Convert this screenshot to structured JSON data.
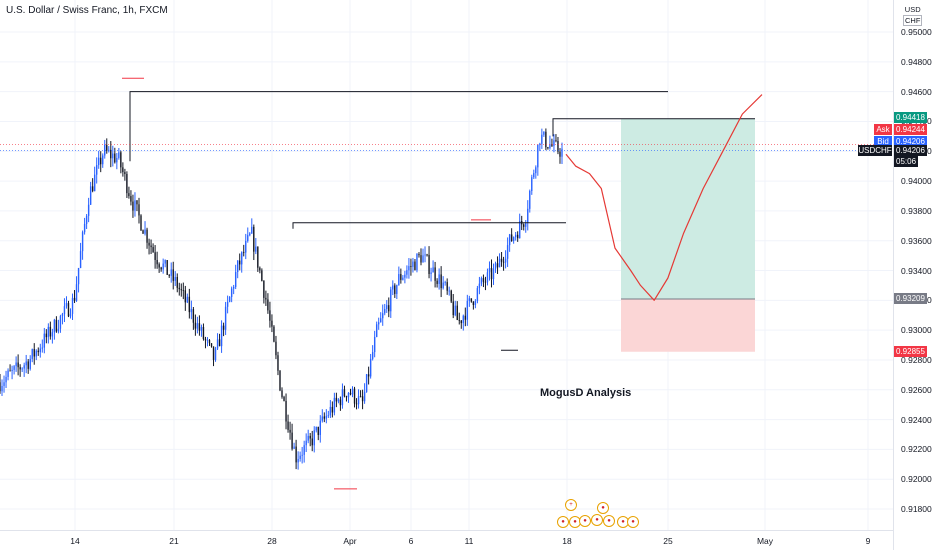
{
  "header": {
    "title": "U.S. Dollar / Swiss Franc, 1h, FXCM"
  },
  "annotation": {
    "text": "MogusD Analysis"
  },
  "price_axis": {
    "currency_top": "USD",
    "currency": "CHF",
    "ticks": [
      "0.95000",
      "0.94800",
      "0.94600",
      "0.94400",
      "0.94200",
      "0.94000",
      "0.93800",
      "0.93600",
      "0.93400",
      "0.93200",
      "0.93000",
      "0.92800",
      "0.92600",
      "0.92400",
      "0.92200",
      "0.92000",
      "0.91800"
    ],
    "ask_label": "Ask",
    "ask_value": "0.94244",
    "bid_label": "Bid",
    "bid_value": "0.94206",
    "target_value": "0.94418",
    "symbol_label": "USDCHF",
    "last_value": "0.94206",
    "countdown": "05:06",
    "entry_value": "0.93209",
    "stop_value": "0.92855"
  },
  "time_axis": {
    "labels": [
      "14",
      "21",
      "28",
      "Apr",
      "6",
      "11",
      "18",
      "25",
      "May",
      "9"
    ]
  },
  "colors": {
    "up_candle": "#2962ff",
    "down_candle": "#131722",
    "profit_zone": "#cdebe3",
    "loss_zone": "#fbd6d6",
    "projection": "#e53935",
    "ask_tag": "#f23645",
    "bid_tag": "#2962ff",
    "target_tag": "#089981",
    "entry_tag": "#787b86",
    "stop_tag": "#f23645"
  },
  "chart_data": {
    "type": "candlestick",
    "title": "U.S. Dollar / Swiss Franc, 1h, FXCM",
    "symbol": "USDCHF",
    "interval": "1h",
    "ylim": [
      0.9175,
      0.9515
    ],
    "x_ticks": [
      "14",
      "21",
      "28",
      "Apr",
      "6",
      "11",
      "18",
      "25",
      "May",
      "9"
    ],
    "price_path": [
      {
        "t": 0,
        "p": 0.9265
      },
      {
        "t": 0.04,
        "p": 0.928
      },
      {
        "t": 0.07,
        "p": 0.93
      },
      {
        "t": 0.1,
        "p": 0.932
      },
      {
        "t": 0.12,
        "p": 0.939
      },
      {
        "t": 0.14,
        "p": 0.942
      },
      {
        "t": 0.16,
        "p": 0.9415
      },
      {
        "t": 0.18,
        "p": 0.9385
      },
      {
        "t": 0.21,
        "p": 0.935
      },
      {
        "t": 0.24,
        "p": 0.933
      },
      {
        "t": 0.27,
        "p": 0.93
      },
      {
        "t": 0.29,
        "p": 0.928
      },
      {
        "t": 0.32,
        "p": 0.934
      },
      {
        "t": 0.34,
        "p": 0.9365
      },
      {
        "t": 0.36,
        "p": 0.932
      },
      {
        "t": 0.38,
        "p": 0.926
      },
      {
        "t": 0.4,
        "p": 0.9215
      },
      {
        "t": 0.42,
        "p": 0.9225
      },
      {
        "t": 0.445,
        "p": 0.9245
      },
      {
        "t": 0.47,
        "p": 0.926
      },
      {
        "t": 0.49,
        "p": 0.925
      },
      {
        "t": 0.51,
        "p": 0.93
      },
      {
        "t": 0.54,
        "p": 0.9335
      },
      {
        "t": 0.57,
        "p": 0.935
      },
      {
        "t": 0.6,
        "p": 0.933
      },
      {
        "t": 0.62,
        "p": 0.9305
      },
      {
        "t": 0.65,
        "p": 0.933
      },
      {
        "t": 0.67,
        "p": 0.934
      },
      {
        "t": 0.69,
        "p": 0.936
      },
      {
        "t": 0.71,
        "p": 0.9375
      },
      {
        "t": 0.73,
        "p": 0.943
      },
      {
        "t": 0.75,
        "p": 0.9422
      },
      {
        "t": 0.76,
        "p": 0.942
      }
    ],
    "levels": [
      {
        "price": 0.946
      },
      {
        "price": 0.94418
      },
      {
        "price": 0.9372
      },
      {
        "price": 0.93209
      },
      {
        "price": 0.92855
      }
    ],
    "position": {
      "type": "long",
      "entry": 0.93209,
      "target": 0.94418,
      "stop": 0.92855
    },
    "projection": [
      {
        "t": 0,
        "p": 0.9418
      },
      {
        "t": 0.05,
        "p": 0.941
      },
      {
        "t": 0.12,
        "p": 0.9405
      },
      {
        "t": 0.18,
        "p": 0.9395
      },
      {
        "t": 0.25,
        "p": 0.9355
      },
      {
        "t": 0.33,
        "p": 0.934
      },
      {
        "t": 0.38,
        "p": 0.933
      },
      {
        "t": 0.45,
        "p": 0.932
      },
      {
        "t": 0.52,
        "p": 0.9335
      },
      {
        "t": 0.6,
        "p": 0.9365
      },
      {
        "t": 0.7,
        "p": 0.9395
      },
      {
        "t": 0.8,
        "p": 0.942
      },
      {
        "t": 0.9,
        "p": 0.9445
      },
      {
        "t": 1.0,
        "p": 0.9458
      }
    ],
    "grid": true
  }
}
